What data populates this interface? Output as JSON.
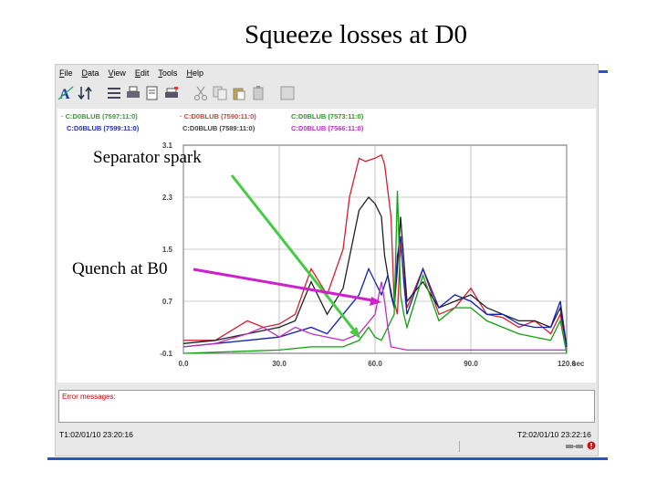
{
  "slide": {
    "title": "Squeeze losses at D0"
  },
  "menu": [
    "File",
    "Data",
    "View",
    "Edit",
    "Tools",
    "Help"
  ],
  "toolbar": [
    "annotate-icon",
    "swap-icon",
    "list-icon",
    "print-icon",
    "print-preview-icon",
    "printer-icon",
    "cut-icon",
    "copy-icon",
    "paste-icon",
    "clipboard-icon",
    "grid-icon"
  ],
  "legend": [
    {
      "label": "· C:D0BLUB (7597:11:0)",
      "color": "#3a9a3a"
    },
    {
      "label": "· C:D0BLUB (7590:11:0)",
      "color": "#d04040"
    },
    {
      "label": "C:D0BLUB (7573:11:0)",
      "color": "#20a020"
    },
    {
      "label": "C:D0BLUB (7599:11:0)",
      "color": "#2030c0"
    },
    {
      "label": "C:D0BLUB (7589:11:0)",
      "color": "#404040"
    },
    {
      "label": "C:D0BLUB (7566:11:0)",
      "color": "#c030c0"
    }
  ],
  "chart_data": {
    "type": "line",
    "xlim": [
      0,
      120
    ],
    "ylim": [
      -0.1,
      3.1
    ],
    "xticks": [
      "0.0",
      "30.0",
      "60.0",
      "90.0",
      "120.0"
    ],
    "yticks": [
      "3.1",
      "2.3",
      "1.5",
      "0.7",
      "-0.1"
    ],
    "xunit": "sec",
    "grid": true,
    "series": [
      {
        "color": "#d02030",
        "x": [
          0,
          10,
          15,
          20,
          25,
          30,
          35,
          40,
          45,
          50,
          52,
          55,
          57,
          60,
          62,
          63,
          65,
          66,
          67,
          68,
          70,
          75,
          80,
          85,
          90,
          95,
          100,
          105,
          110,
          115,
          118,
          120
        ],
        "y": [
          0.1,
          0.1,
          0.25,
          0.4,
          0.3,
          0.35,
          0.5,
          1.2,
          0.8,
          1.5,
          2.3,
          2.9,
          2.85,
          2.9,
          2.95,
          2.8,
          2.0,
          0.7,
          0.5,
          1.6,
          0.6,
          1.2,
          0.5,
          0.6,
          0.9,
          0.5,
          0.45,
          0.3,
          0.4,
          0.2,
          0.5,
          0.0
        ]
      },
      {
        "color": "#202020",
        "x": [
          0,
          10,
          20,
          30,
          35,
          40,
          45,
          50,
          55,
          58,
          60,
          62,
          63,
          65,
          66,
          67,
          68,
          70,
          75,
          80,
          85,
          90,
          95,
          100,
          105,
          110,
          115,
          118,
          120
        ],
        "y": [
          0.05,
          0.1,
          0.2,
          0.3,
          0.4,
          1.0,
          0.5,
          0.9,
          2.1,
          2.3,
          2.2,
          2.0,
          1.4,
          0.8,
          0.6,
          1.2,
          2.0,
          0.7,
          1.0,
          0.6,
          0.7,
          0.8,
          0.6,
          0.5,
          0.4,
          0.4,
          0.3,
          0.6,
          0.0
        ]
      },
      {
        "color": "#1020b0",
        "x": [
          0,
          20,
          30,
          40,
          45,
          50,
          55,
          58,
          60,
          62,
          64,
          66,
          67,
          68,
          69,
          70,
          75,
          80,
          85,
          90,
          95,
          100,
          105,
          110,
          115,
          118,
          120
        ],
        "y": [
          0.0,
          0.1,
          0.15,
          0.3,
          0.2,
          0.5,
          0.8,
          1.2,
          1.0,
          0.8,
          1.1,
          0.6,
          1.4,
          1.7,
          1.0,
          0.5,
          1.2,
          0.6,
          0.8,
          0.7,
          0.5,
          0.5,
          0.35,
          0.3,
          0.3,
          0.7,
          0.0
        ]
      },
      {
        "color": "#10a010",
        "x": [
          0,
          30,
          40,
          50,
          55,
          58,
          60,
          62,
          63,
          64,
          66,
          67,
          68,
          69,
          70,
          75,
          80,
          85,
          90,
          95,
          100,
          105,
          110,
          115,
          118,
          120
        ],
        "y": [
          -0.1,
          -0.05,
          0.0,
          0.0,
          0.1,
          0.3,
          0.15,
          0.1,
          0.2,
          0.3,
          0.5,
          2.4,
          0.8,
          0.5,
          0.3,
          1.1,
          0.4,
          0.6,
          0.6,
          0.4,
          0.3,
          0.2,
          0.15,
          0.1,
          0.4,
          -0.1
        ]
      },
      {
        "color": "#c030c0",
        "x": [
          0,
          10,
          20,
          25,
          30,
          35,
          40,
          45,
          50,
          55,
          60,
          62,
          63,
          64,
          65,
          70,
          80,
          90,
          100,
          110,
          120
        ],
        "y": [
          0.0,
          0.05,
          0.2,
          0.3,
          0.15,
          0.3,
          0.2,
          0.15,
          0.1,
          0.2,
          0.5,
          1.0,
          0.7,
          0.3,
          0.0,
          -0.05,
          -0.05,
          -0.05,
          -0.05,
          -0.05,
          -0.05
        ]
      }
    ]
  },
  "annotations": {
    "spark": "Separator spark",
    "quench": "Quench at B0"
  },
  "errors": {
    "label": "Error messages:"
  },
  "status": {
    "t1": "T1:02/01/10 23:20:16",
    "t2": "T2:02/01/10 23:22:16"
  },
  "colors": {
    "accent": "#2b52c8",
    "spark_arrow": "#44cc44",
    "quench_arrow": "#cc22cc"
  }
}
